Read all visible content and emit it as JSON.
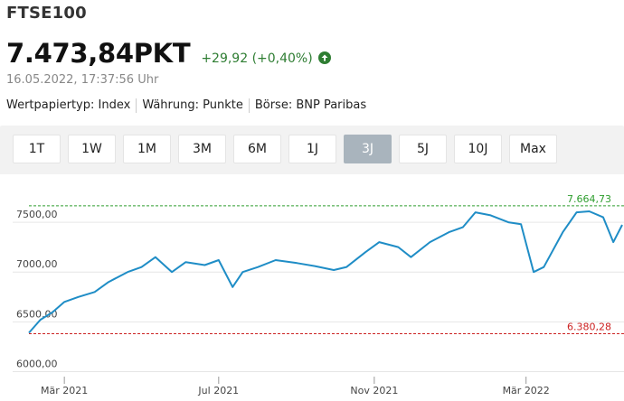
{
  "header": {
    "title": "FTSE100",
    "price": "7.473,84PKT",
    "change": "+29,92 (+0,40%)",
    "timestamp": "16.05.2022, 17:37:56 Uhr",
    "meta": [
      "Wertpapiertyp: Index",
      "Währung: Punkte",
      "Börse: BNP Paribas"
    ],
    "change_icon": "arrow-up-circle-icon",
    "change_color": "#2e7d32"
  },
  "tabs": [
    {
      "label": "1T",
      "active": false
    },
    {
      "label": "1W",
      "active": false
    },
    {
      "label": "1M",
      "active": false
    },
    {
      "label": "3M",
      "active": false
    },
    {
      "label": "6M",
      "active": false
    },
    {
      "label": "1J",
      "active": false
    },
    {
      "label": "3J",
      "active": true
    },
    {
      "label": "5J",
      "active": false
    },
    {
      "label": "10J",
      "active": false
    },
    {
      "label": "Max",
      "active": false
    }
  ],
  "chart_data": {
    "type": "line",
    "ylim": [
      5950,
      7800
    ],
    "y_ticks": [
      6000,
      6500,
      7000,
      7500
    ],
    "y_tick_labels": [
      "6000,00",
      "6500,00",
      "7000,00",
      "7500,00"
    ],
    "x_tick_labels": [
      "Mär 2021",
      "Jul 2021",
      "Nov 2021",
      "Mär 2022"
    ],
    "x_tick_dates": [
      "2021-03-01",
      "2021-07-01",
      "2021-11-01",
      "2022-03-01"
    ],
    "x_range": [
      "2021-02-01",
      "2022-05-16"
    ],
    "grid": "horizontal",
    "line_color": "#1f8dc6",
    "max_line": {
      "value": 7664.73,
      "label": "7.664,73",
      "color": "#2e9e2e"
    },
    "min_line": {
      "value": 6380.28,
      "label": "6.380,28",
      "color": "#cc2222"
    },
    "series": [
      {
        "dates": [
          "2021-02-01",
          "2021-02-10",
          "2021-02-20",
          "2021-03-01",
          "2021-03-12",
          "2021-03-25",
          "2021-04-05",
          "2021-04-20",
          "2021-05-01",
          "2021-05-12",
          "2021-05-25",
          "2021-06-05",
          "2021-06-20",
          "2021-07-01",
          "2021-07-12",
          "2021-07-20",
          "2021-08-01",
          "2021-08-15",
          "2021-09-01",
          "2021-09-15",
          "2021-09-30",
          "2021-10-10",
          "2021-10-25",
          "2021-11-05",
          "2021-11-20",
          "2021-11-30",
          "2021-12-15",
          "2021-12-30",
          "2022-01-10",
          "2022-01-20",
          "2022-02-01",
          "2022-02-15",
          "2022-02-25",
          "2022-03-07",
          "2022-03-15",
          "2022-03-30",
          "2022-04-10",
          "2022-04-20",
          "2022-05-01",
          "2022-05-09",
          "2022-05-16"
        ],
        "values": [
          6390,
          6520,
          6600,
          6700,
          6750,
          6800,
          6900,
          7000,
          7050,
          7150,
          7000,
          7100,
          7070,
          7120,
          6850,
          7000,
          7050,
          7120,
          7090,
          7060,
          7020,
          7050,
          7200,
          7300,
          7250,
          7150,
          7300,
          7400,
          7450,
          7600,
          7570,
          7500,
          7480,
          7000,
          7050,
          7400,
          7600,
          7610,
          7550,
          7300,
          7473.84
        ]
      }
    ]
  }
}
